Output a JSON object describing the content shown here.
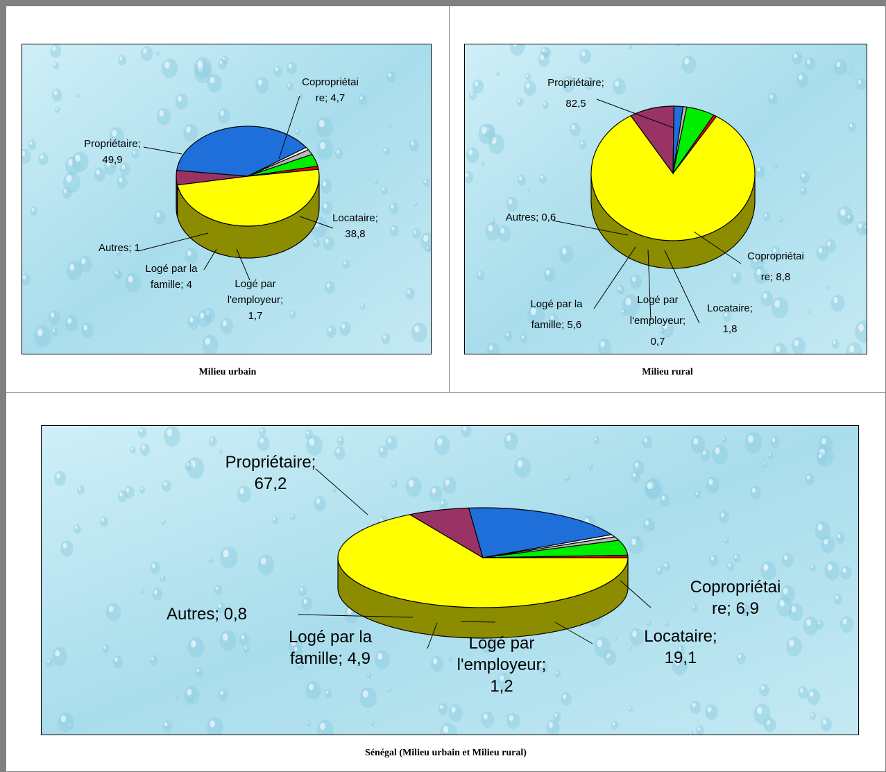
{
  "colors": {
    "proprietaire": "#FFFF00",
    "coproprietaire": "#993366",
    "locataire": "#1E6FD9",
    "employeur": "#B8B8B8",
    "famille": "#00EE00",
    "autres": "#FF0000",
    "gap": "#FFFFFF"
  },
  "chart_data": [
    {
      "type": "pie",
      "caption": "Milieu urbain",
      "slices": [
        {
          "key": "proprietaire",
          "label": [
            "Propriétaire;",
            "49,9"
          ],
          "value": 49.9
        },
        {
          "key": "coproprietaire",
          "label": [
            "Copropriétai",
            "re; 4,7"
          ],
          "value": 4.7
        },
        {
          "key": "locataire",
          "label": [
            "Locataire;",
            "38,8"
          ],
          "value": 38.8
        },
        {
          "key": "gap",
          "label": [],
          "value": 0.9
        },
        {
          "key": "employeur",
          "label": [
            "Logé  par",
            "l'employeur;",
            "1,7"
          ],
          "value": 1.7
        },
        {
          "key": "famille",
          "label": [
            "Logé par la",
            "famille; 4"
          ],
          "value": 4.0
        },
        {
          "key": "autres",
          "label": [
            "Autres; 1"
          ],
          "value": 1.0
        }
      ]
    },
    {
      "type": "pie",
      "caption": "Milieu rural",
      "slices": [
        {
          "key": "proprietaire",
          "label": [
            "Propriétaire;",
            "82,5"
          ],
          "value": 82.5
        },
        {
          "key": "coproprietaire",
          "label": [
            "Copropriétai",
            "re; 8,8"
          ],
          "value": 8.8
        },
        {
          "key": "locataire",
          "label": [
            "Locataire;",
            "1,8"
          ],
          "value": 1.8
        },
        {
          "key": "employeur",
          "label": [
            "Logé  par",
            "l'employeur;",
            "0,7"
          ],
          "value": 0.7
        },
        {
          "key": "famille",
          "label": [
            "Logé par la",
            "famille; 5,6"
          ],
          "value": 5.6
        },
        {
          "key": "autres",
          "label": [
            "Autres; 0,6"
          ],
          "value": 0.6
        }
      ]
    },
    {
      "type": "pie",
      "caption": "Sénégal (Milieu urbain et Milieu rural)",
      "slices": [
        {
          "key": "proprietaire",
          "label": [
            "Propriétaire;",
            "67,2"
          ],
          "value": 67.2
        },
        {
          "key": "coproprietaire",
          "label": [
            "Copropriétai",
            "re; 6,9"
          ],
          "value": 6.9
        },
        {
          "key": "locataire",
          "label": [
            "Locataire;",
            "19,1"
          ],
          "value": 19.1
        },
        {
          "key": "gap",
          "label": [],
          "value": 0.8
        },
        {
          "key": "employeur",
          "label": [
            "Logé  par",
            "l'employeur;",
            "1,2"
          ],
          "value": 1.2
        },
        {
          "key": "famille",
          "label": [
            "Logé par la",
            "famille; 4,9"
          ],
          "value": 4.9
        },
        {
          "key": "autres",
          "label": [
            "Autres; 0,8"
          ],
          "value": 0.8
        }
      ]
    }
  ]
}
